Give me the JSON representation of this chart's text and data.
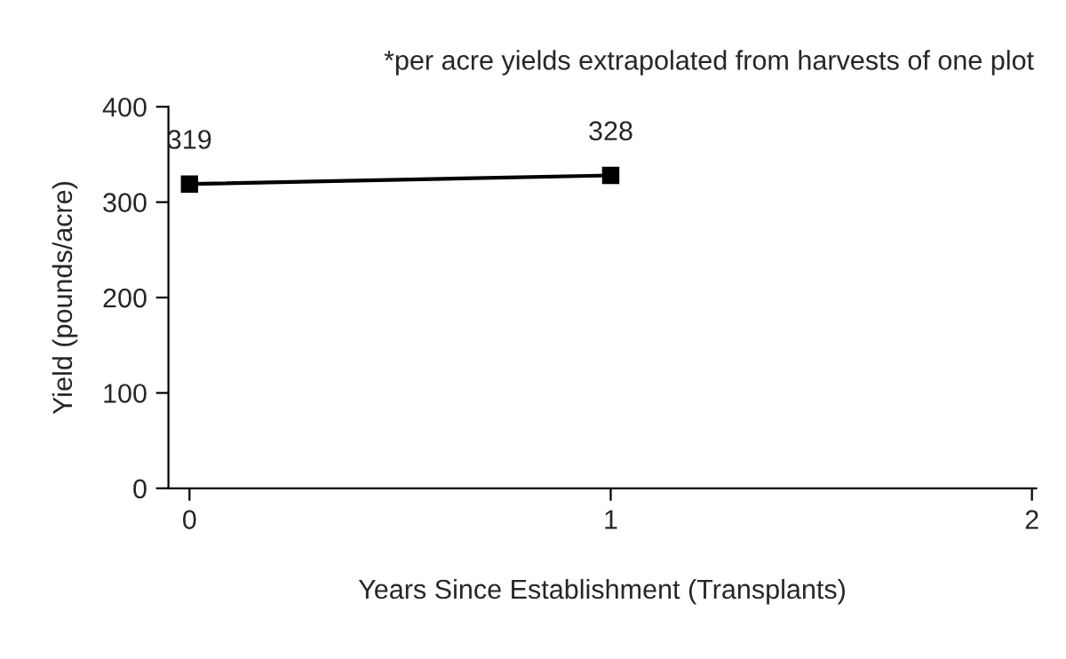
{
  "chart_data": {
    "type": "line",
    "xlabel": "Years Since Establishment (Transplants)",
    "ylabel": "Yield (pounds/acre)",
    "annotations": [
      "*per acre yields extrapolated from harvests of one plot"
    ],
    "x": [
      0,
      1
    ],
    "series": [
      {
        "color": "#000000",
        "values": [
          319,
          328
        ]
      }
    ],
    "data_labels": true,
    "marker": "square",
    "line_style": "solid",
    "xlim": [
      -0.05,
      2.01
    ],
    "xticks": [
      0,
      1,
      2
    ],
    "ylim": [
      0,
      400
    ],
    "yticks": [
      0,
      100,
      200,
      300,
      400
    ],
    "grid": false,
    "legend": false
  }
}
